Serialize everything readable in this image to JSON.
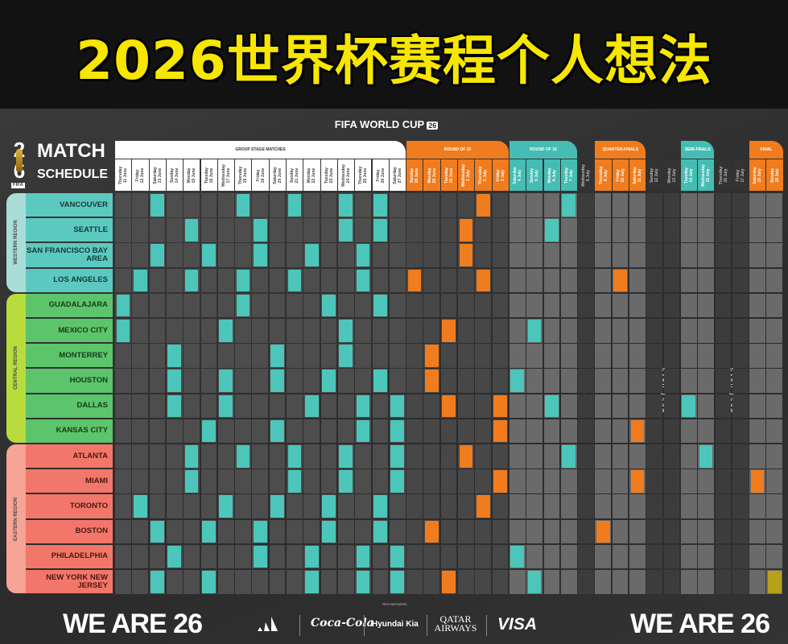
{
  "title": "2026世界杯赛程个人想法",
  "header": {
    "brand": "FIFA WORLD CUP",
    "brand_badge": "26"
  },
  "logo": {
    "number": "2 6",
    "match": "MATCH",
    "schedule": "SCHEDULE",
    "fifa": "FIFA"
  },
  "colors": {
    "teal": "#4cc6bb",
    "orange": "#f07c1e",
    "final": "#b7a11b",
    "western": "#5cc9c0",
    "central": "#5cc46a",
    "eastern": "#f2776a"
  },
  "phases": [
    {
      "label": "GROUP STAGE MATCHES",
      "type": "group",
      "color": "#ffffff",
      "columns": [
        {
          "day": "Thursday",
          "date": "11 June"
        },
        {
          "day": "Friday",
          "date": "12 June"
        },
        {
          "day": "Saturday",
          "date": "13 June"
        },
        {
          "day": "Sunday",
          "date": "14 June"
        },
        {
          "day": "Monday",
          "date": "15 June"
        },
        {
          "day": "Tuesday",
          "date": "16 June"
        },
        {
          "day": "Wednesday",
          "date": "17 June"
        },
        {
          "day": "Thursday",
          "date": "18 June"
        },
        {
          "day": "Friday",
          "date": "19 June"
        },
        {
          "day": "Saturday",
          "date": "20 June"
        },
        {
          "day": "Sunday",
          "date": "21 June"
        },
        {
          "day": "Monday",
          "date": "22 June"
        },
        {
          "day": "Tuesday",
          "date": "23 June"
        },
        {
          "day": "Wednesday",
          "date": "24 June"
        },
        {
          "day": "Thursday",
          "date": "25 June"
        },
        {
          "day": "Friday",
          "date": "26 June"
        },
        {
          "day": "Saturday",
          "date": "27 June"
        }
      ]
    },
    {
      "label": "ROUND OF 32",
      "type": "ko",
      "color": "#f07c1e",
      "columns": [
        {
          "day": "Sunday",
          "date": "28 June"
        },
        {
          "day": "Monday",
          "date": "29 June"
        },
        {
          "day": "Tuesday",
          "date": "30 June"
        },
        {
          "day": "Wednesday",
          "date": "1 July"
        },
        {
          "day": "Thursday",
          "date": "2 July"
        },
        {
          "day": "Friday",
          "date": "3 July"
        }
      ]
    },
    {
      "label": "ROUND OF 16",
      "type": "ko",
      "color": "#45bdb4",
      "columns": [
        {
          "day": "Saturday",
          "date": "4 July"
        },
        {
          "day": "Sunday",
          "date": "5 July"
        },
        {
          "day": "Monday",
          "date": "6 July"
        },
        {
          "day": "Tuesday",
          "date": "7 July"
        }
      ]
    },
    {
      "label": "REST DAY",
      "type": "rest",
      "columns": [
        {
          "day": "Wednesday",
          "date": "8 July"
        }
      ]
    },
    {
      "label": "QUARTER-FINALS",
      "type": "ko",
      "color": "#f07c1e",
      "columns": [
        {
          "day": "Thursday",
          "date": "9 July"
        },
        {
          "day": "Friday",
          "date": "10 July"
        },
        {
          "day": "Saturday",
          "date": "11 July"
        }
      ]
    },
    {
      "label": "REST DAYS",
      "type": "rest",
      "columns": [
        {
          "day": "Sunday",
          "date": "12 July"
        },
        {
          "day": "Monday",
          "date": "13 July"
        }
      ]
    },
    {
      "label": "SEMI-FINALS",
      "type": "ko",
      "color": "#45bdb4",
      "columns": [
        {
          "day": "Tuesday",
          "date": "14 July"
        },
        {
          "day": "Wednesday",
          "date": "15 July"
        }
      ]
    },
    {
      "label": "REST DAYS",
      "type": "rest",
      "columns": [
        {
          "day": "Thursday",
          "date": "16 July"
        },
        {
          "day": "Friday",
          "date": "17 July"
        }
      ]
    },
    {
      "label": "FINAL",
      "type": "ko",
      "color": "#f07c1e",
      "columns": [
        {
          "day": "Saturday",
          "date": "18 July"
        },
        {
          "day": "Sunday",
          "date": "19 July"
        }
      ]
    }
  ],
  "regions": [
    {
      "label": "WESTERN REGION",
      "key": "western",
      "strip": "#a9ddd7",
      "text": "#143a37",
      "cities": [
        {
          "name": "VANCOUVER",
          "matches": [
            "13 June",
            "18 June",
            "21 June",
            "24 June",
            "26 June",
            "2 July",
            "7 July"
          ]
        },
        {
          "name": "SEATTLE",
          "matches": [
            "15 June",
            "19 June",
            "24 June",
            "26 June",
            "1 July",
            "6 July"
          ]
        },
        {
          "name": "SAN FRANCISCO BAY AREA",
          "matches": [
            "13 June",
            "16 June",
            "19 June",
            "22 June",
            "25 June",
            "1 July"
          ]
        },
        {
          "name": "LOS ANGELES",
          "matches": [
            "12 June",
            "15 June",
            "18 June",
            "21 June",
            "25 June",
            "28 June",
            "2 July",
            "10 July"
          ]
        }
      ]
    },
    {
      "label": "CENTRAL REGION",
      "key": "central",
      "strip": "#b8dc3c",
      "text": "#163a18",
      "cities": [
        {
          "name": "GUADALAJARA",
          "matches": [
            "11 June",
            "18 June",
            "23 June",
            "26 June"
          ]
        },
        {
          "name": "MEXICO CITY",
          "matches": [
            "11 June",
            "17 June",
            "24 June",
            "30 June",
            "5 July"
          ]
        },
        {
          "name": "MONTERREY",
          "matches": [
            "14 June",
            "20 June",
            "24 June",
            "29 June"
          ]
        },
        {
          "name": "HOUSTON",
          "matches": [
            "14 June",
            "17 June",
            "20 June",
            "23 June",
            "26 June",
            "29 June",
            "4 July"
          ]
        },
        {
          "name": "DALLAS",
          "matches": [
            "14 June",
            "17 June",
            "22 June",
            "25 June",
            "27 June",
            "30 June",
            "3 July",
            "6 July",
            "14 July"
          ]
        },
        {
          "name": "KANSAS CITY",
          "matches": [
            "16 June",
            "20 June",
            "25 June",
            "27 June",
            "3 July",
            "11 July"
          ]
        }
      ]
    },
    {
      "label": "EASTERN REGION",
      "key": "eastern",
      "strip": "#f5a496",
      "text": "#4a1610",
      "cities": [
        {
          "name": "ATLANTA",
          "matches": [
            "15 June",
            "18 June",
            "21 June",
            "24 June",
            "27 June",
            "1 July",
            "7 July",
            "15 July"
          ]
        },
        {
          "name": "MIAMI",
          "matches": [
            "15 June",
            "21 June",
            "24 June",
            "27 June",
            "3 July",
            "11 July",
            "18 July"
          ]
        },
        {
          "name": "TORONTO",
          "matches": [
            "12 June",
            "17 June",
            "20 June",
            "23 June",
            "26 June",
            "2 July"
          ]
        },
        {
          "name": "BOSTON",
          "matches": [
            "13 June",
            "16 June",
            "19 June",
            "23 June",
            "26 June",
            "29 June",
            "9 July"
          ]
        },
        {
          "name": "PHILADELPHIA",
          "matches": [
            "14 June",
            "19 June",
            "22 June",
            "25 June",
            "27 June",
            "4 July"
          ]
        },
        {
          "name": "NEW YORK NEW JERSEY",
          "matches": [
            "13 June",
            "16 June",
            "22 June",
            "25 June",
            "27 June",
            "30 June",
            "5 July",
            "19 July"
          ]
        }
      ]
    }
  ],
  "footer": {
    "campaign": "WE ARE 26",
    "sponsor_caption": "FIFA PARTNERS",
    "sponsors": [
      "adidas",
      "Coca-Cola",
      "Hyundai Kia",
      "QATAR AIRWAYS",
      "VISA"
    ]
  }
}
